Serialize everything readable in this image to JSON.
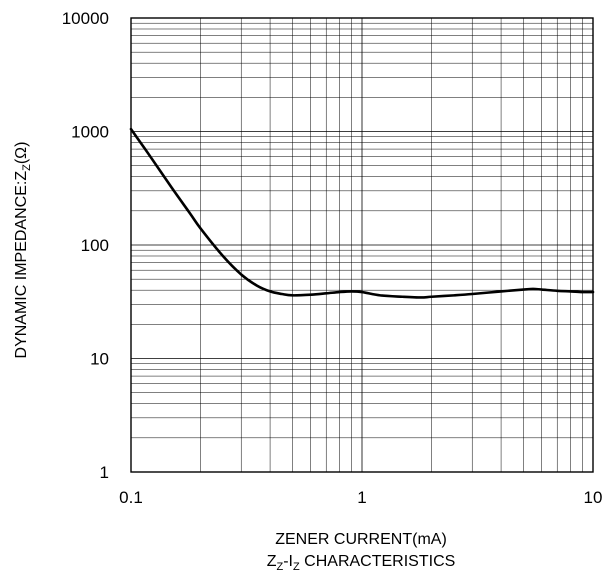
{
  "chart_data": {
    "type": "line",
    "title": "",
    "xlabel": "ZENER CURRENT(mA)",
    "ylabel": {
      "main": "DYNAMIC IMPEDANCE:Z",
      "sub": "Z",
      "unit": "(Ω)"
    },
    "caption": {
      "z": "Z",
      "z_sub": "Z",
      "dash": "-I",
      "i_sub": "Z",
      "rest": " CHARACTERISTICS"
    },
    "x_scale": "log",
    "y_scale": "log",
    "xlim": [
      0.1,
      10
    ],
    "ylim": [
      1,
      10000
    ],
    "x_ticks": [
      0.1,
      1,
      10
    ],
    "x_tick_labels": [
      "0.1",
      "1",
      "10"
    ],
    "y_ticks": [
      1,
      10,
      100,
      1000,
      10000
    ],
    "y_tick_labels": [
      "1",
      "10",
      "100",
      "1000",
      "10000"
    ],
    "grid": true,
    "series": [
      {
        "x": [
          0.1,
          0.12,
          0.15,
          0.18,
          0.2,
          0.25,
          0.3,
          0.35,
          0.4,
          0.45,
          0.5,
          0.6,
          0.7,
          0.8,
          0.9,
          1.0,
          1.2,
          1.5,
          1.8,
          2.0,
          2.5,
          3.0,
          4.0,
          5.0,
          5.5,
          6.0,
          7.0,
          8.0,
          9.0,
          10.0
        ],
        "y": [
          1050,
          620,
          320,
          190,
          140,
          80,
          55,
          44,
          39,
          37,
          36,
          36.5,
          37.5,
          38.5,
          39,
          38.5,
          36,
          35,
          34.5,
          35,
          36,
          37,
          39,
          40.5,
          41,
          40.5,
          39.5,
          39,
          38.5,
          38.5
        ]
      }
    ]
  }
}
